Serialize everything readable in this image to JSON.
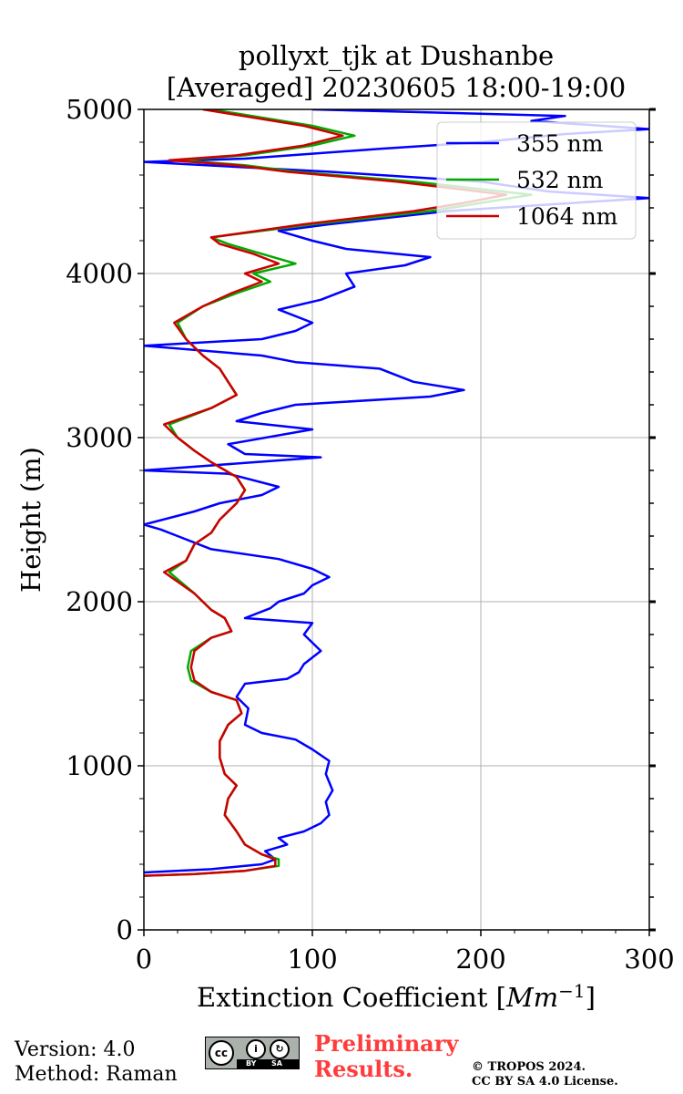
{
  "chart_data": {
    "type": "line",
    "title_line1": "pollyxt_tjk at Dushanbe",
    "title_line2": "[Averaged] 20230605 18:00-19:00",
    "xlabel": "Extinction Coefficient [",
    "xlabel_unit": "Mm",
    "xlabel_exp": "−1",
    "xlabel_end": "]",
    "ylabel": "Height (m)",
    "xlim": [
      0,
      300
    ],
    "ylim": [
      0,
      5000
    ],
    "xticks": [
      0,
      100,
      200,
      300
    ],
    "yticks": [
      0,
      1000,
      2000,
      3000,
      4000,
      5000
    ],
    "xtick_labels": [
      "0",
      "100",
      "200",
      "300"
    ],
    "ytick_labels": [
      "0",
      "1000",
      "2000",
      "3000",
      "4000",
      "5000"
    ],
    "grid": true,
    "legend_position": "top-right",
    "series": [
      {
        "name": "355 nm",
        "color": "#0000ff",
        "points": [
          [
            0,
            350
          ],
          [
            40,
            370
          ],
          [
            70,
            400
          ],
          [
            78,
            430
          ],
          [
            72,
            480
          ],
          [
            85,
            520
          ],
          [
            80,
            560
          ],
          [
            95,
            600
          ],
          [
            105,
            650
          ],
          [
            110,
            700
          ],
          [
            108,
            780
          ],
          [
            112,
            850
          ],
          [
            108,
            950
          ],
          [
            110,
            1030
          ],
          [
            100,
            1100
          ],
          [
            90,
            1160
          ],
          [
            70,
            1200
          ],
          [
            60,
            1250
          ],
          [
            62,
            1350
          ],
          [
            55,
            1420
          ],
          [
            60,
            1500
          ],
          [
            85,
            1530
          ],
          [
            92,
            1570
          ],
          [
            95,
            1620
          ],
          [
            105,
            1700
          ],
          [
            95,
            1800
          ],
          [
            100,
            1870
          ],
          [
            60,
            1900
          ],
          [
            75,
            1960
          ],
          [
            80,
            2000
          ],
          [
            95,
            2050
          ],
          [
            100,
            2100
          ],
          [
            110,
            2150
          ],
          [
            100,
            2200
          ],
          [
            80,
            2260
          ],
          [
            40,
            2320
          ],
          [
            20,
            2400
          ],
          [
            10,
            2440
          ],
          [
            0,
            2470
          ],
          [
            30,
            2550
          ],
          [
            45,
            2600
          ],
          [
            70,
            2650
          ],
          [
            80,
            2700
          ],
          [
            50,
            2780
          ],
          [
            0,
            2800
          ],
          [
            105,
            2880
          ],
          [
            60,
            2900
          ],
          [
            50,
            2960
          ],
          [
            100,
            3050
          ],
          [
            55,
            3100
          ],
          [
            70,
            3150
          ],
          [
            90,
            3200
          ],
          [
            170,
            3250
          ],
          [
            190,
            3290
          ],
          [
            160,
            3340
          ],
          [
            140,
            3420
          ],
          [
            90,
            3460
          ],
          [
            70,
            3500
          ],
          [
            0,
            3560
          ],
          [
            70,
            3600
          ],
          [
            90,
            3650
          ],
          [
            100,
            3700
          ],
          [
            80,
            3780
          ],
          [
            105,
            3840
          ],
          [
            125,
            3920
          ],
          [
            120,
            4000
          ],
          [
            155,
            4050
          ],
          [
            170,
            4100
          ],
          [
            120,
            4150
          ],
          [
            100,
            4200
          ],
          [
            80,
            4260
          ],
          [
            110,
            4300
          ],
          [
            180,
            4380
          ],
          [
            240,
            4420
          ],
          [
            300,
            4460
          ],
          [
            240,
            4500
          ],
          [
            200,
            4560
          ],
          [
            110,
            4620
          ],
          [
            0,
            4680
          ],
          [
            60,
            4700
          ],
          [
            140,
            4760
          ],
          [
            200,
            4800
          ],
          [
            250,
            4850
          ],
          [
            300,
            4880
          ],
          [
            230,
            4930
          ],
          [
            250,
            4960
          ],
          [
            100,
            5000
          ]
        ]
      },
      {
        "name": "532 nm",
        "color": "#00aa00",
        "points": [
          [
            0,
            330
          ],
          [
            30,
            340
          ],
          [
            60,
            360
          ],
          [
            80,
            390
          ],
          [
            80,
            430
          ],
          [
            70,
            460
          ],
          [
            60,
            520
          ],
          [
            55,
            600
          ],
          [
            48,
            700
          ],
          [
            50,
            800
          ],
          [
            55,
            880
          ],
          [
            48,
            950
          ],
          [
            45,
            1050
          ],
          [
            45,
            1150
          ],
          [
            50,
            1250
          ],
          [
            58,
            1320
          ],
          [
            55,
            1400
          ],
          [
            40,
            1450
          ],
          [
            28,
            1520
          ],
          [
            26,
            1600
          ],
          [
            28,
            1700
          ],
          [
            40,
            1780
          ],
          [
            52,
            1820
          ],
          [
            48,
            1900
          ],
          [
            40,
            1950
          ],
          [
            30,
            2050
          ],
          [
            15,
            2180
          ],
          [
            25,
            2250
          ],
          [
            30,
            2350
          ],
          [
            40,
            2420
          ],
          [
            45,
            2500
          ],
          [
            55,
            2600
          ],
          [
            60,
            2680
          ],
          [
            55,
            2760
          ],
          [
            40,
            2850
          ],
          [
            30,
            2920
          ],
          [
            20,
            3000
          ],
          [
            15,
            3080
          ],
          [
            40,
            3180
          ],
          [
            55,
            3260
          ],
          [
            50,
            3340
          ],
          [
            45,
            3420
          ],
          [
            35,
            3500
          ],
          [
            25,
            3600
          ],
          [
            20,
            3700
          ],
          [
            35,
            3800
          ],
          [
            55,
            3880
          ],
          [
            75,
            3950
          ],
          [
            65,
            4000
          ],
          [
            90,
            4060
          ],
          [
            70,
            4120
          ],
          [
            50,
            4180
          ],
          [
            40,
            4220
          ],
          [
            100,
            4300
          ],
          [
            170,
            4380
          ],
          [
            200,
            4430
          ],
          [
            230,
            4480
          ],
          [
            160,
            4560
          ],
          [
            90,
            4620
          ],
          [
            60,
            4660
          ],
          [
            20,
            4690
          ],
          [
            60,
            4720
          ],
          [
            100,
            4780
          ],
          [
            125,
            4840
          ],
          [
            100,
            4900
          ],
          [
            70,
            4950
          ],
          [
            40,
            5000
          ]
        ]
      },
      {
        "name": "1064 nm",
        "color": "#cc0000",
        "points": [
          [
            0,
            330
          ],
          [
            30,
            340
          ],
          [
            60,
            360
          ],
          [
            78,
            390
          ],
          [
            78,
            430
          ],
          [
            70,
            460
          ],
          [
            60,
            520
          ],
          [
            55,
            600
          ],
          [
            48,
            700
          ],
          [
            50,
            800
          ],
          [
            55,
            880
          ],
          [
            48,
            950
          ],
          [
            45,
            1050
          ],
          [
            45,
            1150
          ],
          [
            50,
            1250
          ],
          [
            58,
            1320
          ],
          [
            55,
            1400
          ],
          [
            40,
            1450
          ],
          [
            30,
            1520
          ],
          [
            28,
            1600
          ],
          [
            30,
            1700
          ],
          [
            40,
            1780
          ],
          [
            52,
            1820
          ],
          [
            48,
            1900
          ],
          [
            40,
            1950
          ],
          [
            30,
            2050
          ],
          [
            12,
            2180
          ],
          [
            25,
            2250
          ],
          [
            30,
            2350
          ],
          [
            40,
            2420
          ],
          [
            45,
            2500
          ],
          [
            55,
            2600
          ],
          [
            60,
            2680
          ],
          [
            55,
            2760
          ],
          [
            40,
            2850
          ],
          [
            30,
            2920
          ],
          [
            20,
            3000
          ],
          [
            12,
            3080
          ],
          [
            40,
            3180
          ],
          [
            55,
            3260
          ],
          [
            50,
            3340
          ],
          [
            45,
            3420
          ],
          [
            35,
            3500
          ],
          [
            25,
            3600
          ],
          [
            18,
            3700
          ],
          [
            35,
            3800
          ],
          [
            52,
            3880
          ],
          [
            70,
            3950
          ],
          [
            60,
            4000
          ],
          [
            80,
            4060
          ],
          [
            65,
            4120
          ],
          [
            45,
            4180
          ],
          [
            40,
            4220
          ],
          [
            95,
            4300
          ],
          [
            160,
            4380
          ],
          [
            190,
            4430
          ],
          [
            215,
            4480
          ],
          [
            150,
            4560
          ],
          [
            85,
            4620
          ],
          [
            55,
            4660
          ],
          [
            15,
            4690
          ],
          [
            55,
            4720
          ],
          [
            95,
            4780
          ],
          [
            118,
            4840
          ],
          [
            95,
            4900
          ],
          [
            65,
            4950
          ],
          [
            35,
            5000
          ]
        ]
      }
    ]
  },
  "footer": {
    "version": "Version: 4.0",
    "method": "Method: Raman",
    "license_badge": {
      "cc": "cc",
      "by": "BY",
      "sa": "SA"
    },
    "prelim_line1": "Preliminary",
    "prelim_line2": "Results.",
    "copyright_line1": "© TROPOS 2024.",
    "copyright_line2": "CC BY SA 4.0 License."
  }
}
